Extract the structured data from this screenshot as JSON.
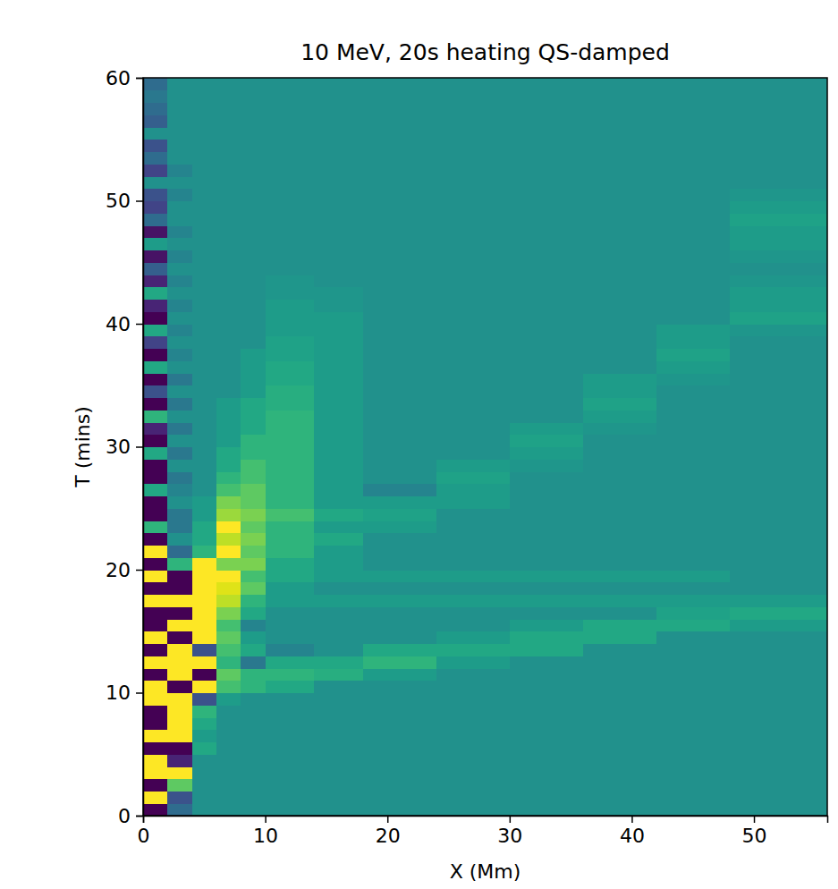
{
  "chart_data": {
    "type": "heatmap",
    "title": "10 MeV, 20s heating QS-damped",
    "x_label": "X (Mm)",
    "y_label": "T (mins)",
    "xlim": [
      0,
      56
    ],
    "ylim": [
      0,
      60
    ],
    "xticks": [
      0,
      10,
      20,
      30,
      40,
      50
    ],
    "yticks": [
      0,
      10,
      20,
      30,
      40,
      50,
      60
    ],
    "color": "viridis",
    "zlim": [
      -1,
      1
    ],
    "x_edges": [
      0,
      2,
      4,
      6,
      8,
      10,
      14,
      18,
      24,
      30,
      36,
      42,
      48,
      56
    ],
    "y_edges": [
      0,
      1,
      2,
      3,
      4,
      5,
      6,
      7,
      8,
      9,
      10,
      11,
      12,
      13,
      14,
      15,
      16,
      17,
      18,
      19,
      20,
      21,
      22,
      23,
      24,
      25,
      26,
      27,
      28,
      29,
      30,
      31,
      32,
      33,
      34,
      35,
      36,
      37,
      38,
      39,
      40,
      41,
      42,
      43,
      44,
      45,
      46,
      47,
      48,
      49,
      50,
      51,
      52,
      53,
      54,
      55,
      56,
      57,
      58,
      59,
      60
    ],
    "z": [
      [
        -1,
        -0.3,
        0,
        0,
        0,
        0,
        0,
        0,
        0,
        0,
        0,
        0,
        0
      ],
      [
        1,
        -0.5,
        0,
        0,
        0,
        0,
        0,
        0,
        0,
        0,
        0,
        0,
        0
      ],
      [
        -1,
        0.5,
        0,
        0,
        0,
        0,
        0,
        0,
        0,
        0,
        0,
        0,
        0
      ],
      [
        1,
        1,
        0,
        0,
        0,
        0,
        0,
        0,
        0,
        0,
        0,
        0,
        0
      ],
      [
        1,
        -0.8,
        0,
        0,
        0,
        0,
        0,
        0,
        0,
        0,
        0,
        0,
        0
      ],
      [
        -1,
        -1,
        0.2,
        0,
        0,
        0,
        0,
        0,
        0,
        0,
        0,
        0,
        0
      ],
      [
        1,
        1,
        0.1,
        0,
        0,
        0,
        0,
        0,
        0,
        0,
        0,
        0,
        0
      ],
      [
        -1,
        1,
        0.2,
        0,
        0,
        0,
        0,
        0,
        0,
        0,
        0,
        0,
        0
      ],
      [
        -1,
        1,
        0.3,
        0,
        0,
        0,
        0,
        0,
        0,
        0,
        0,
        0,
        0
      ],
      [
        1,
        1,
        -0.5,
        0.1,
        0,
        0,
        0,
        0,
        0,
        0,
        0,
        0,
        0
      ],
      [
        1,
        -1,
        1,
        0.4,
        0.3,
        0.2,
        0,
        0,
        0,
        0,
        0,
        0,
        0
      ],
      [
        -1,
        1,
        -1,
        0.5,
        0.3,
        0.3,
        0.25,
        0.1,
        0,
        0,
        0,
        0,
        0
      ],
      [
        1,
        1,
        1,
        0.3,
        -0.2,
        0.2,
        0.2,
        0.3,
        0.1,
        0,
        0,
        0,
        0
      ],
      [
        -1,
        1,
        -0.5,
        0.4,
        0.2,
        -0.1,
        0,
        0.2,
        0.2,
        0.2,
        0,
        0,
        0
      ],
      [
        1,
        -1,
        1,
        0.5,
        0.1,
        0,
        0,
        0,
        0.1,
        0.2,
        0.2,
        0,
        0
      ],
      [
        -1,
        1,
        1,
        0.4,
        -0.1,
        0,
        0,
        0,
        0,
        0.1,
        0.2,
        0.2,
        0.1
      ],
      [
        -1,
        -1,
        1,
        0.6,
        0.2,
        0,
        0,
        0,
        0,
        0,
        0,
        0.15,
        0.2
      ],
      [
        1,
        1,
        1,
        0.8,
        0.3,
        0.1,
        0.1,
        0.1,
        0.1,
        0.1,
        0.1,
        0.1,
        0.1
      ],
      [
        -1,
        -1,
        1,
        0.9,
        0.5,
        0.1,
        0,
        0,
        0,
        0,
        0,
        0,
        0
      ],
      [
        1,
        -1,
        1,
        1,
        0.4,
        0.2,
        0.1,
        0.1,
        0.1,
        0.1,
        0.1,
        0.1,
        0
      ],
      [
        -1,
        0.3,
        1,
        0.6,
        0.6,
        0.2,
        0.1,
        0,
        0,
        0,
        0,
        0,
        0
      ],
      [
        1,
        -0.3,
        0.3,
        1,
        0.5,
        0.3,
        0.1,
        0,
        0,
        0,
        0,
        0,
        0
      ],
      [
        -1,
        0,
        0.2,
        0.8,
        0.6,
        0.3,
        0.2,
        0,
        0,
        0,
        0,
        0,
        0
      ],
      [
        0.3,
        -0.2,
        0.2,
        1,
        0.5,
        0.3,
        0.1,
        0.1,
        0,
        0,
        0,
        0,
        0
      ],
      [
        -1,
        -0.2,
        0.1,
        0.7,
        0.6,
        0.4,
        0.2,
        0.15,
        0,
        0,
        0,
        0,
        0
      ],
      [
        -1,
        0,
        0.1,
        0.6,
        0.5,
        0.3,
        0.1,
        0.1,
        0.1,
        0,
        0,
        0,
        0
      ],
      [
        0.2,
        -0.1,
        0,
        0.4,
        0.5,
        0.3,
        0.1,
        -0.1,
        0.1,
        0,
        0,
        0,
        0
      ],
      [
        -1,
        -0.2,
        0,
        0.3,
        0.4,
        0.3,
        0.1,
        0,
        0.15,
        0,
        0,
        0,
        0
      ],
      [
        -1,
        0,
        0,
        0.2,
        0.4,
        0.3,
        0.1,
        0,
        0.1,
        0.05,
        0,
        0,
        0
      ],
      [
        0.2,
        -0.2,
        0,
        0.2,
        0.3,
        0.3,
        0.1,
        0,
        0,
        0.1,
        0,
        0,
        0
      ],
      [
        -1,
        0,
        0,
        0.1,
        0.3,
        0.3,
        0.1,
        0,
        0,
        0.15,
        0,
        0,
        0
      ],
      [
        -0.8,
        -0.2,
        0,
        0.1,
        0.2,
        0.3,
        0.1,
        0,
        0,
        0.1,
        0.05,
        0,
        0
      ],
      [
        0.3,
        0,
        0,
        0.1,
        0.2,
        0.3,
        0.1,
        0,
        0,
        0,
        0.1,
        0,
        0
      ],
      [
        -1,
        -0.2,
        0,
        0.1,
        0.2,
        0.25,
        0.1,
        0,
        0,
        0,
        0.15,
        0,
        0
      ],
      [
        -0.5,
        0,
        0,
        0,
        0.1,
        0.25,
        0.1,
        0,
        0,
        0,
        0.1,
        0,
        0
      ],
      [
        -1,
        -0.2,
        0,
        0,
        0.1,
        0.2,
        0.1,
        0,
        0,
        0,
        0.1,
        0.05,
        0
      ],
      [
        0.2,
        0,
        0,
        0,
        0.1,
        0.2,
        0.1,
        0,
        0,
        0,
        0,
        0.1,
        0
      ],
      [
        -1,
        -0.1,
        0,
        0,
        0.1,
        0.15,
        0.1,
        0,
        0,
        0,
        0,
        0.15,
        0
      ],
      [
        -0.6,
        0,
        0,
        0,
        0,
        0.15,
        0.1,
        0,
        0,
        0,
        0,
        0.1,
        0
      ],
      [
        0.2,
        -0.1,
        0,
        0,
        0,
        0.1,
        0.1,
        0,
        0,
        0,
        0,
        0.1,
        0.05
      ],
      [
        -1,
        0,
        0,
        0,
        0,
        0.1,
        0.1,
        0,
        0,
        0,
        0,
        0,
        0.15
      ],
      [
        -0.8,
        -0.1,
        0,
        0,
        0,
        0.1,
        0.05,
        0,
        0,
        0,
        0,
        0,
        0.1
      ],
      [
        0.2,
        0,
        0,
        0,
        0,
        0.05,
        0.05,
        0,
        0,
        0,
        0,
        0,
        0.1
      ],
      [
        -0.8,
        -0.1,
        0,
        0,
        0,
        0.05,
        0,
        0,
        0,
        0,
        0,
        0,
        0.05
      ],
      [
        -0.4,
        0,
        0,
        0,
        0,
        0,
        0,
        0,
        0,
        0,
        0,
        0,
        0
      ],
      [
        -0.9,
        -0.1,
        0,
        0,
        0,
        0,
        0,
        0,
        0,
        0,
        0,
        0,
        0.05
      ],
      [
        0.1,
        0,
        0,
        0,
        0,
        0,
        0,
        0,
        0,
        0,
        0,
        0,
        0.1
      ],
      [
        -0.9,
        -0.1,
        0,
        0,
        0,
        0,
        0,
        0,
        0,
        0,
        0,
        0,
        0.1
      ],
      [
        -0.3,
        0,
        0,
        0,
        0,
        0,
        0,
        0,
        0,
        0,
        0,
        0,
        0.15
      ],
      [
        -0.6,
        0,
        0,
        0,
        0,
        0,
        0,
        0,
        0,
        0,
        0,
        0,
        0.1
      ],
      [
        -0.5,
        -0.1,
        0,
        0,
        0,
        0,
        0,
        0,
        0,
        0,
        0,
        0,
        0.05
      ],
      [
        0,
        0,
        0,
        0,
        0,
        0,
        0,
        0,
        0,
        0,
        0,
        0,
        0
      ],
      [
        -0.6,
        -0.1,
        0,
        0,
        0,
        0,
        0,
        0,
        0,
        0,
        0,
        0,
        0
      ],
      [
        -0.3,
        0,
        0,
        0,
        0,
        0,
        0,
        0,
        0,
        0,
        0,
        0,
        0
      ],
      [
        -0.5,
        0,
        0,
        0,
        0,
        0,
        0,
        0,
        0,
        0,
        0,
        0,
        0
      ],
      [
        0,
        0,
        0,
        0,
        0,
        0,
        0,
        0,
        0,
        0,
        0,
        0,
        0
      ],
      [
        -0.4,
        0,
        0,
        0,
        0,
        0,
        0,
        0,
        0,
        0,
        0,
        0,
        0
      ],
      [
        -0.3,
        0,
        0,
        0,
        0,
        0,
        0,
        0,
        0,
        0,
        0,
        0,
        0
      ],
      [
        -0.2,
        0,
        0,
        0,
        0,
        0,
        0,
        0,
        0,
        0,
        0,
        0,
        0
      ],
      [
        -0.3,
        0,
        0,
        0,
        0,
        0,
        0,
        0,
        0,
        0,
        0,
        0,
        0
      ]
    ]
  }
}
